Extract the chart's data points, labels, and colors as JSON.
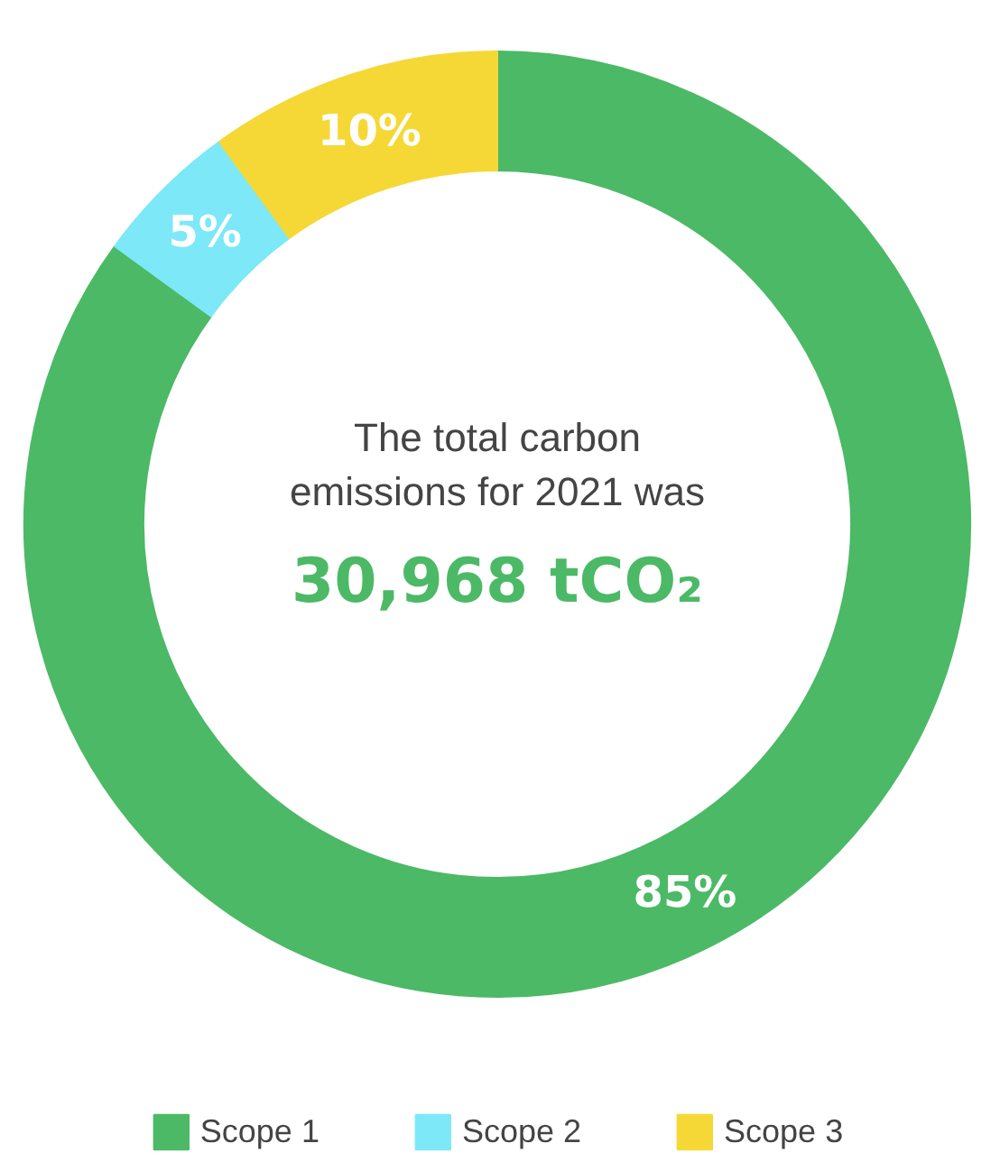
{
  "chart_data": {
    "type": "donut",
    "categories": [
      "Scope 1",
      "Scope 2",
      "Scope 3"
    ],
    "values": [
      85,
      5,
      10
    ],
    "colors": [
      "#4cb966",
      "#7de8f7",
      "#f5d835"
    ],
    "value_labels": [
      "85%",
      "5%",
      "10%"
    ],
    "legend": "bottom",
    "annotations": [
      "The total carbon emissions for 2021 was",
      "30,968 tCO₂"
    ]
  }
}
